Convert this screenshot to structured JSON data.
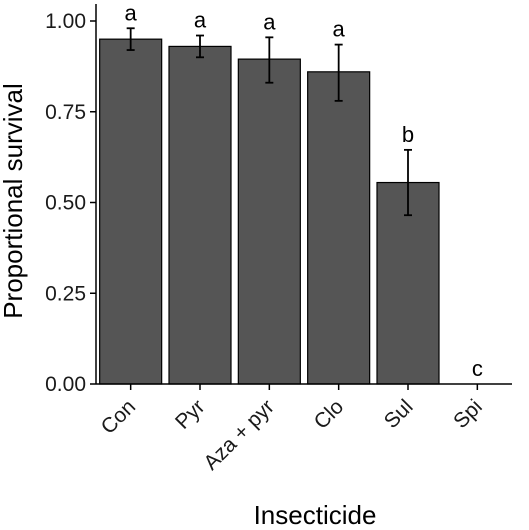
{
  "chart_data": {
    "type": "bar",
    "xlabel": "Insecticide",
    "ylabel": "Proportional survival",
    "ylim": [
      0,
      1.0
    ],
    "yticks": [
      {
        "value": 0.0,
        "label": "0.00"
      },
      {
        "value": 0.25,
        "label": "0.25"
      },
      {
        "value": 0.5,
        "label": "0.50"
      },
      {
        "value": 0.75,
        "label": "0.75"
      },
      {
        "value": 1.0,
        "label": "1.00"
      }
    ],
    "categories": [
      "Con",
      "Pyr",
      "Aza + pyr",
      "Clo",
      "Sul",
      "Spi"
    ],
    "values": [
      0.95,
      0.93,
      0.895,
      0.86,
      0.555,
      0.0
    ],
    "error_low": [
      0.92,
      0.9,
      0.83,
      0.78,
      0.465,
      null
    ],
    "error_high": [
      0.98,
      0.96,
      0.955,
      0.935,
      0.645,
      null
    ],
    "significance_labels": [
      "a",
      "a",
      "a",
      "a",
      "b",
      "c"
    ],
    "bar_color": "#555555",
    "grid": false,
    "legend": "none"
  }
}
